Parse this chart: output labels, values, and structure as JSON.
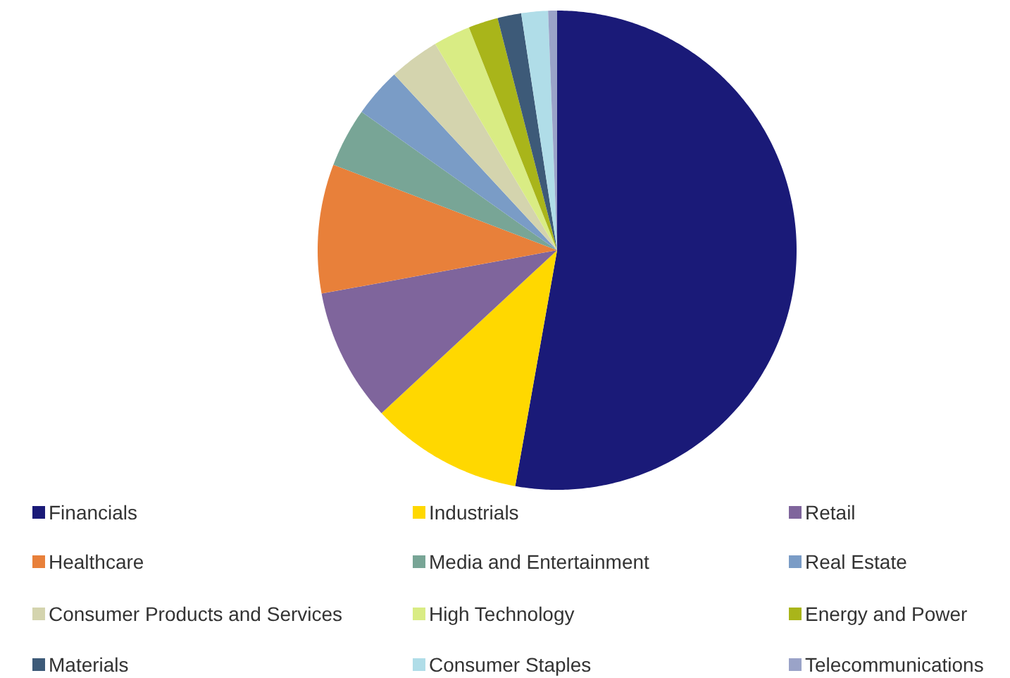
{
  "chart_data": {
    "type": "pie",
    "categories": [
      "Financials",
      "Industrials",
      "Retail",
      "Healthcare",
      "Media and Entertainment",
      "Real Estate",
      "Consumer Products and Services",
      "High Technology",
      "Energy and Power",
      "Materials",
      "Consumer Staples",
      "Telecommunications"
    ],
    "values": [
      52.8,
      10.3,
      9.0,
      8.7,
      4.0,
      3.3,
      3.4,
      2.5,
      2.0,
      1.6,
      1.8,
      0.6
    ],
    "colors": [
      "#1a1a78",
      "#ffd800",
      "#7f659c",
      "#e8803a",
      "#78a596",
      "#7a9cc6",
      "#d4d4ae",
      "#d9ec84",
      "#a9b51a",
      "#3d5a78",
      "#b0dde8",
      "#9aa3c8"
    ],
    "legend": "bottom"
  }
}
